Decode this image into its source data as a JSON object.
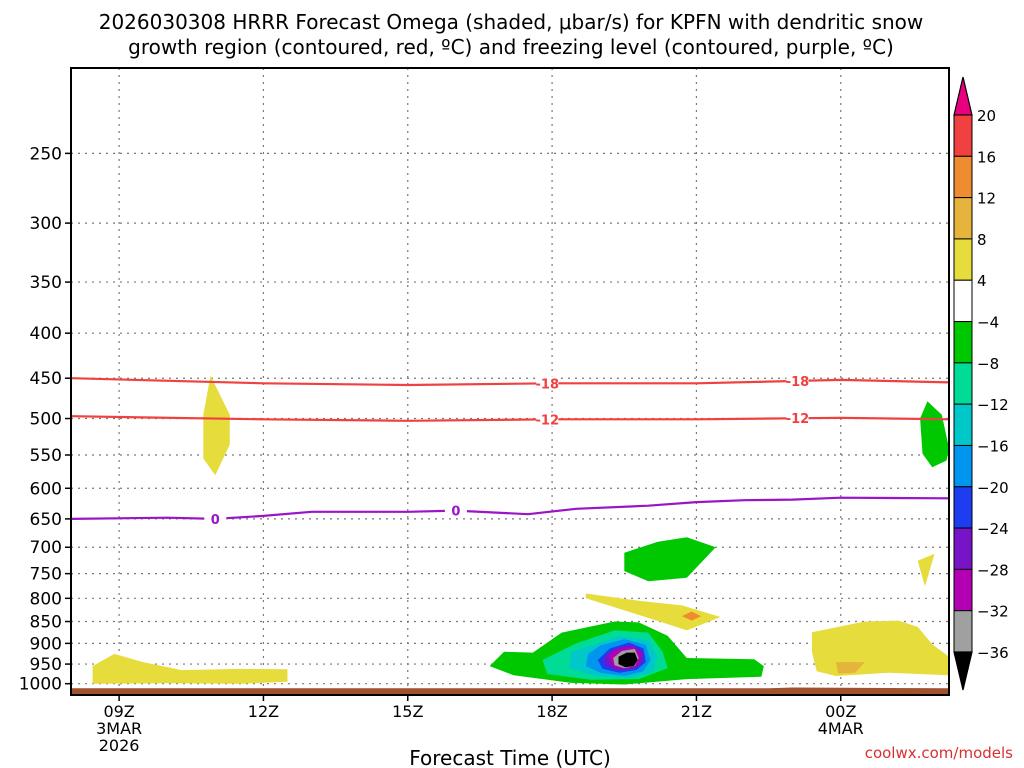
{
  "chart_data": {
    "type": "heatmap",
    "title_line1": "2026030308 HRRR Forecast Omega (shaded, μbar/s) for KPFN with dendritic snow",
    "title_line2": "growth region (contoured, red, ºC) and freezing level (contoured, purple, ºC)",
    "xlabel": "Forecast Time (UTC)",
    "credit": "coolwx.com/models",
    "x_range_hours_since_09Z": [
      -1.0,
      17.25
    ],
    "y_axis": {
      "label": "",
      "scale": "log",
      "range_hpa": [
        1030,
        200
      ],
      "ticks": [
        250,
        300,
        350,
        400,
        450,
        500,
        550,
        600,
        650,
        700,
        750,
        800,
        850,
        900,
        950,
        1000
      ]
    },
    "x_ticks": [
      {
        "hour": 0,
        "line1": "09Z",
        "line2": "3MAR",
        "line3": "2026"
      },
      {
        "hour": 3,
        "line1": "12Z",
        "line2": "",
        "line3": ""
      },
      {
        "hour": 6,
        "line1": "15Z",
        "line2": "",
        "line3": ""
      },
      {
        "hour": 9,
        "line1": "18Z",
        "line2": "",
        "line3": ""
      },
      {
        "hour": 12,
        "line1": "21Z",
        "line2": "",
        "line3": ""
      },
      {
        "hour": 15,
        "line1": "00Z",
        "line2": "4MAR",
        "line3": ""
      }
    ],
    "grid": true,
    "legend": {
      "placement": "right",
      "bins": [
        {
          "color": "#e8007e"
        },
        {
          "color": "#f04040"
        },
        {
          "color": "#f08c30"
        },
        {
          "color": "#e6b43c"
        },
        {
          "color": "#e6dc3c"
        },
        {
          "color": "#ffffff"
        },
        {
          "color": "#00c800"
        },
        {
          "color": "#00dc96"
        },
        {
          "color": "#00c8c8"
        },
        {
          "color": "#0096f0"
        },
        {
          "color": "#1e3cf0"
        },
        {
          "color": "#7814c8"
        },
        {
          "color": "#b400b4"
        },
        {
          "color": "#a0a0a0"
        },
        {
          "color": "#000000"
        }
      ],
      "labels": [
        {
          "value": 20,
          "text": "20"
        },
        {
          "value": 16,
          "text": "16"
        },
        {
          "value": 12,
          "text": "12"
        },
        {
          "value": 8,
          "text": "8"
        },
        {
          "value": 4,
          "text": "4"
        },
        {
          "value": -4,
          "text": "−4"
        },
        {
          "value": -8,
          "text": "−8"
        },
        {
          "value": -12,
          "text": "−12"
        },
        {
          "value": -16,
          "text": "−16"
        },
        {
          "value": -20,
          "text": "−20"
        },
        {
          "value": -24,
          "text": "−24"
        },
        {
          "value": -28,
          "text": "−28"
        },
        {
          "value": -32,
          "text": "−32"
        },
        {
          "value": -36,
          "text": "−36"
        }
      ]
    },
    "contours": [
      {
        "color": "#f04040",
        "label": "-18",
        "points": [
          [
            -1,
            450
          ],
          [
            3,
            456
          ],
          [
            6,
            458
          ],
          [
            9,
            456
          ],
          [
            12,
            456
          ],
          [
            15,
            452
          ],
          [
            17.25,
            455
          ]
        ],
        "label_hours": [
          8.9,
          14.1
        ]
      },
      {
        "color": "#f04040",
        "label": "-12",
        "points": [
          [
            -1,
            497
          ],
          [
            3,
            501
          ],
          [
            6,
            503
          ],
          [
            9,
            501
          ],
          [
            12,
            501
          ],
          [
            15,
            499
          ],
          [
            17.25,
            501
          ]
        ],
        "label_hours": [
          8.9,
          14.1
        ]
      },
      {
        "color": "#9a14c8",
        "label": "0",
        "points": [
          [
            -1,
            650
          ],
          [
            1,
            648
          ],
          [
            2,
            650
          ],
          [
            3,
            645
          ],
          [
            4,
            638
          ],
          [
            6,
            638
          ],
          [
            7,
            636
          ],
          [
            8.5,
            642
          ],
          [
            9.5,
            633
          ],
          [
            11,
            628
          ],
          [
            12,
            622
          ],
          [
            13,
            619
          ],
          [
            14,
            618
          ],
          [
            15,
            615
          ],
          [
            17.25,
            616
          ]
        ],
        "label_hours": [
          2.0,
          7.0
        ]
      }
    ],
    "omega_regions": [
      {
        "color": "#e6dc3c",
        "points": [
          [
            -0.55,
            1000
          ],
          [
            -0.55,
            955
          ],
          [
            -0.1,
            925
          ],
          [
            0.5,
            945
          ],
          [
            1.3,
            965
          ],
          [
            2.5,
            962
          ],
          [
            3.5,
            963
          ],
          [
            3.5,
            995
          ],
          [
            2.5,
            1000
          ],
          [
            1,
            999
          ]
        ]
      },
      {
        "color": "#e6dc3c",
        "points": [
          [
            1.9,
            447
          ],
          [
            2.3,
            495
          ],
          [
            2.3,
            535
          ],
          [
            2.0,
            580
          ],
          [
            1.75,
            555
          ],
          [
            1.75,
            495
          ]
        ]
      },
      {
        "color": "#00c800",
        "points": [
          [
            17.2,
            558
          ],
          [
            16.9,
            568
          ],
          [
            16.7,
            548
          ],
          [
            16.65,
            500
          ],
          [
            16.8,
            478
          ],
          [
            17.1,
            495
          ],
          [
            17.25,
            540
          ]
        ]
      },
      {
        "color": "#00c800",
        "points": [
          [
            11.2,
            690
          ],
          [
            11.8,
            682
          ],
          [
            12.4,
            700
          ],
          [
            11.8,
            758
          ],
          [
            11.0,
            765
          ],
          [
            10.5,
            745
          ],
          [
            10.5,
            710
          ]
        ]
      },
      {
        "color": "#e6dc3c",
        "points": [
          [
            16.95,
            712
          ],
          [
            16.75,
            775
          ],
          [
            16.6,
            725
          ]
        ]
      },
      {
        "color": "#e6dc3c",
        "points": [
          [
            9.7,
            790
          ],
          [
            10.8,
            805
          ],
          [
            11.7,
            815
          ],
          [
            12.5,
            840
          ],
          [
            11.8,
            870
          ],
          [
            11.0,
            842
          ],
          [
            9.7,
            800
          ]
        ]
      },
      {
        "color": "#f08c30",
        "points": [
          [
            11.9,
            828
          ],
          [
            12.1,
            838
          ],
          [
            11.9,
            848
          ],
          [
            11.7,
            838
          ]
        ]
      },
      {
        "color": "#e6dc3c",
        "points": [
          [
            14.4,
            874
          ],
          [
            15.5,
            850
          ],
          [
            16.2,
            848
          ],
          [
            16.6,
            862
          ],
          [
            16.9,
            902
          ],
          [
            17.25,
            932
          ],
          [
            17.25,
            978
          ],
          [
            16.0,
            972
          ],
          [
            14.9,
            980
          ],
          [
            14.5,
            968
          ],
          [
            14.4,
            920
          ]
        ]
      },
      {
        "color": "#e6b43c",
        "points": [
          [
            14.9,
            945
          ],
          [
            15.5,
            945
          ],
          [
            15.3,
            972
          ],
          [
            14.95,
            974
          ]
        ]
      },
      {
        "color": "#00c800",
        "points": [
          [
            8.6,
            922
          ],
          [
            9.2,
            875
          ],
          [
            10.3,
            850
          ],
          [
            10.8,
            852
          ],
          [
            11.4,
            882
          ],
          [
            11.8,
            935
          ],
          [
            13.2,
            938
          ],
          [
            13.4,
            955
          ],
          [
            13.35,
            982
          ],
          [
            11.8,
            988
          ],
          [
            10.5,
            1002
          ],
          [
            9.4,
            998
          ],
          [
            8.2,
            978
          ],
          [
            7.7,
            955
          ],
          [
            8.0,
            920
          ]
        ]
      },
      {
        "color": "#00dc96",
        "points": [
          [
            9.5,
            900
          ],
          [
            10.3,
            870
          ],
          [
            11.0,
            875
          ],
          [
            11.3,
            920
          ],
          [
            11.4,
            960
          ],
          [
            10.8,
            988
          ],
          [
            9.8,
            990
          ],
          [
            8.9,
            975
          ],
          [
            8.8,
            940
          ]
        ]
      },
      {
        "color": "#00c8c8",
        "points": [
          [
            9.8,
            905
          ],
          [
            10.4,
            883
          ],
          [
            11.0,
            892
          ],
          [
            11.2,
            932
          ],
          [
            11.1,
            970
          ],
          [
            10.6,
            985
          ],
          [
            9.9,
            980
          ],
          [
            9.35,
            960
          ],
          [
            9.4,
            920
          ]
        ]
      },
      {
        "color": "#0096f0",
        "points": [
          [
            10.0,
            905
          ],
          [
            10.5,
            890
          ],
          [
            10.95,
            903
          ],
          [
            11.05,
            940
          ],
          [
            10.9,
            968
          ],
          [
            10.5,
            980
          ],
          [
            10.0,
            972
          ],
          [
            9.7,
            955
          ],
          [
            9.75,
            925
          ]
        ]
      },
      {
        "color": "#1e3cf0",
        "points": [
          [
            10.2,
            912
          ],
          [
            10.6,
            898
          ],
          [
            10.9,
            912
          ],
          [
            10.95,
            945
          ],
          [
            10.75,
            965
          ],
          [
            10.4,
            972
          ],
          [
            10.05,
            962
          ],
          [
            9.95,
            940
          ]
        ]
      },
      {
        "color": "#7814c8",
        "points": [
          [
            10.3,
            912
          ],
          [
            10.65,
            903
          ],
          [
            10.9,
            920
          ],
          [
            10.88,
            948
          ],
          [
            10.7,
            962
          ],
          [
            10.35,
            966
          ],
          [
            10.1,
            952
          ],
          [
            10.1,
            930
          ]
        ]
      },
      {
        "color": "#b400b4",
        "points": [
          [
            10.4,
            914
          ],
          [
            10.7,
            908
          ],
          [
            10.85,
            928
          ],
          [
            10.8,
            952
          ],
          [
            10.55,
            962
          ],
          [
            10.3,
            958
          ],
          [
            10.2,
            940
          ],
          [
            10.2,
            925
          ]
        ]
      },
      {
        "color": "#a0a0a0",
        "points": [
          [
            10.45,
            918
          ],
          [
            10.72,
            913
          ],
          [
            10.8,
            935
          ],
          [
            10.72,
            955
          ],
          [
            10.5,
            960
          ],
          [
            10.3,
            953
          ],
          [
            10.27,
            935
          ]
        ]
      },
      {
        "color": "#000000",
        "points": [
          [
            10.55,
            922
          ],
          [
            10.72,
            922
          ],
          [
            10.78,
            940
          ],
          [
            10.7,
            955
          ],
          [
            10.52,
            958
          ],
          [
            10.38,
            950
          ],
          [
            10.38,
            932
          ]
        ]
      }
    ],
    "terrain": {
      "color": "#a0522d",
      "points": [
        [
          -1,
          1012
        ],
        [
          13.5,
          1012
        ],
        [
          14.0,
          1010
        ],
        [
          17.25,
          1012
        ],
        [
          17.25,
          1030
        ],
        [
          -1,
          1030
        ]
      ]
    }
  }
}
